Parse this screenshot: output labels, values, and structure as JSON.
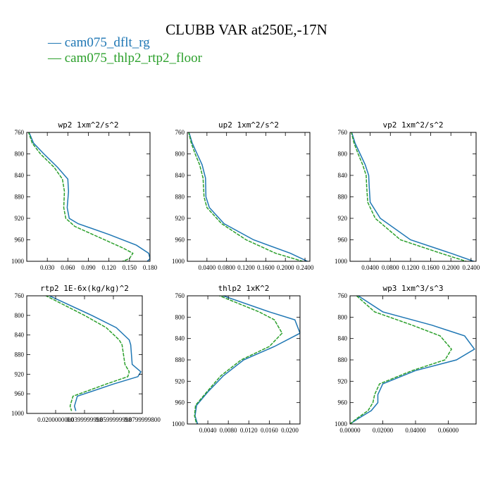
{
  "title": "CLUBB VAR at250E,-17N",
  "legend": [
    {
      "label": "— cam075_dflt_rg",
      "color": "#1f77b4"
    },
    {
      "label": "— cam075_thlp2_rtp2_floor",
      "color": "#2ca02c"
    }
  ],
  "colors": {
    "series1": "#1f77b4",
    "series2": "#2ca02c"
  },
  "chart_data": [
    {
      "type": "line",
      "title": "wp2  1xm^2/s^2",
      "xlim": [
        0,
        0.18
      ],
      "ylim": [
        760,
        1000
      ],
      "y_inverted": true,
      "xticks": [
        0.03,
        0.06,
        0.09,
        0.12,
        0.15,
        0.18
      ],
      "xtick_labels": [
        "0.030",
        "0.060",
        "0.090",
        "0.120",
        "0.150",
        "0.180"
      ],
      "yticks": [
        760,
        800,
        840,
        880,
        920,
        960,
        1000
      ],
      "series": [
        {
          "name": "cam075_dflt_rg",
          "y": [
            750,
            780,
            800,
            825,
            847,
            870,
            900,
            920,
            930,
            950,
            970,
            985,
            995,
            1000
          ],
          "x": [
            0.0,
            0.01,
            0.025,
            0.045,
            0.06,
            0.061,
            0.059,
            0.062,
            0.075,
            0.12,
            0.16,
            0.178,
            0.18,
            0.176
          ]
        },
        {
          "name": "cam075_thlp2_rtp2_floor",
          "y": [
            750,
            780,
            800,
            825,
            847,
            870,
            900,
            920,
            935,
            955,
            975,
            985,
            995,
            1000
          ],
          "x": [
            0.0,
            0.008,
            0.02,
            0.04,
            0.052,
            0.055,
            0.054,
            0.057,
            0.07,
            0.105,
            0.14,
            0.155,
            0.15,
            0.14
          ]
        }
      ]
    },
    {
      "type": "line",
      "title": "up2  1xm^2/s^2",
      "xlim": [
        0,
        0.25
      ],
      "ylim": [
        760,
        1000
      ],
      "y_inverted": true,
      "xticks": [
        0.04,
        0.08,
        0.12,
        0.16,
        0.2,
        0.24
      ],
      "xtick_labels": [
        "0.0400",
        "0.0800",
        "0.1200",
        "0.1600",
        "0.2000",
        "0.2400"
      ],
      "yticks": [
        760,
        800,
        840,
        880,
        920,
        960,
        1000
      ],
      "series": [
        {
          "name": "cam075_dflt_rg",
          "y": [
            750,
            780,
            800,
            820,
            845,
            880,
            900,
            930,
            960,
            985,
            1000
          ],
          "x": [
            0.0,
            0.01,
            0.02,
            0.03,
            0.037,
            0.038,
            0.045,
            0.075,
            0.135,
            0.21,
            0.245
          ]
        },
        {
          "name": "cam075_thlp2_rtp2_floor",
          "y": [
            750,
            780,
            800,
            820,
            845,
            880,
            900,
            930,
            960,
            985,
            1000
          ],
          "x": [
            0.0,
            0.008,
            0.016,
            0.025,
            0.032,
            0.034,
            0.04,
            0.07,
            0.12,
            0.18,
            0.235
          ]
        }
      ]
    },
    {
      "type": "line",
      "title": "vp2  1xm^2/s^2",
      "xlim": [
        0,
        0.25
      ],
      "ylim": [
        760,
        1000
      ],
      "y_inverted": true,
      "xticks": [
        0.04,
        0.08,
        0.12,
        0.16,
        0.2,
        0.24
      ],
      "xtick_labels": [
        "0.0400",
        "0.0800",
        "0.1200",
        "0.1600",
        "0.2000",
        "0.2400"
      ],
      "yticks": [
        760,
        800,
        840,
        880,
        920,
        960,
        1000
      ],
      "series": [
        {
          "name": "cam075_dflt_rg",
          "y": [
            750,
            780,
            800,
            820,
            840,
            860,
            890,
            920,
            960,
            985,
            1000
          ],
          "x": [
            0.0,
            0.01,
            0.02,
            0.03,
            0.037,
            0.038,
            0.04,
            0.06,
            0.12,
            0.2,
            0.245
          ]
        },
        {
          "name": "cam075_thlp2_rtp2_floor",
          "y": [
            750,
            780,
            800,
            820,
            840,
            860,
            890,
            920,
            960,
            985,
            1000
          ],
          "x": [
            0.0,
            0.008,
            0.016,
            0.025,
            0.032,
            0.033,
            0.035,
            0.05,
            0.1,
            0.18,
            0.23
          ]
        }
      ]
    },
    {
      "type": "line",
      "title": "rtp2  1E-6x(kg/kg)^2",
      "xlim": [
        0,
        0.08
      ],
      "ylim": [
        760,
        1000
      ],
      "y_inverted": true,
      "xticks": [
        0.02,
        0.04,
        0.06,
        0.08
      ],
      "xtick_labels": [
        "0.0200000000",
        "0.0399999998",
        "0.0599999998",
        "0.0799999800"
      ],
      "yticks": [
        760,
        800,
        840,
        880,
        920,
        960,
        1000
      ],
      "series": [
        {
          "name": "cam075_dflt_rg",
          "y": [
            755,
            800,
            825,
            850,
            860,
            900,
            915,
            925,
            940,
            965,
            985,
            995
          ],
          "x": [
            0.012,
            0.045,
            0.062,
            0.071,
            0.072,
            0.073,
            0.079,
            0.077,
            0.06,
            0.035,
            0.033,
            0.034
          ]
        },
        {
          "name": "cam075_thlp2_rtp2_floor",
          "y": [
            755,
            800,
            825,
            850,
            860,
            900,
            915,
            925,
            940,
            965,
            985,
            995
          ],
          "x": [
            0.01,
            0.04,
            0.055,
            0.064,
            0.066,
            0.068,
            0.071,
            0.07,
            0.055,
            0.032,
            0.03,
            0.031
          ]
        }
      ]
    },
    {
      "type": "line",
      "title": "thlp2  1xK^2",
      "xlim": [
        0,
        0.022
      ],
      "ylim": [
        760,
        1000
      ],
      "y_inverted": true,
      "xticks": [
        0.004,
        0.008,
        0.012,
        0.016,
        0.02
      ],
      "xtick_labels": [
        "0.0040",
        "0.0080",
        "0.0120",
        "0.0160",
        "0.0200"
      ],
      "yticks": [
        760,
        800,
        840,
        880,
        920,
        960,
        1000
      ],
      "series": [
        {
          "name": "cam075_dflt_rg",
          "y": [
            755,
            790,
            805,
            830,
            855,
            880,
            910,
            940,
            965,
            985,
            1000
          ],
          "x": [
            0.0055,
            0.016,
            0.021,
            0.022,
            0.017,
            0.011,
            0.007,
            0.004,
            0.0018,
            0.0015,
            0.002
          ]
        },
        {
          "name": "cam075_thlp2_rtp2_floor",
          "y": [
            755,
            790,
            805,
            830,
            855,
            880,
            910,
            940,
            965,
            985,
            1000
          ],
          "x": [
            0.005,
            0.014,
            0.017,
            0.0185,
            0.016,
            0.0105,
            0.0065,
            0.0038,
            0.0016,
            0.0014,
            0.0018
          ]
        }
      ]
    },
    {
      "type": "line",
      "title": "wp3  1xm^3/s^3",
      "xlim": [
        0,
        0.077
      ],
      "ylim": [
        760,
        1000
      ],
      "y_inverted": true,
      "xticks": [
        0,
        0.02,
        0.04,
        0.06
      ],
      "xtick_labels": [
        "0.00000",
        "0.02000",
        "0.04000",
        "0.06000"
      ],
      "yticks": [
        760,
        800,
        840,
        880,
        920,
        960,
        1000
      ],
      "series": [
        {
          "name": "cam075_dflt_rg",
          "y": [
            760,
            790,
            815,
            835,
            860,
            880,
            900,
            925,
            945,
            960,
            975,
            990,
            1000
          ],
          "x": [
            0.005,
            0.02,
            0.05,
            0.07,
            0.076,
            0.065,
            0.04,
            0.02,
            0.017,
            0.017,
            0.013,
            0.005,
            0.0
          ]
        },
        {
          "name": "cam075_thlp2_rtp2_floor",
          "y": [
            760,
            790,
            815,
            835,
            860,
            880,
            900,
            925,
            945,
            960,
            975,
            990,
            1000
          ],
          "x": [
            0.004,
            0.015,
            0.038,
            0.055,
            0.062,
            0.058,
            0.038,
            0.018,
            0.015,
            0.014,
            0.011,
            0.004,
            0.0
          ]
        }
      ]
    }
  ]
}
